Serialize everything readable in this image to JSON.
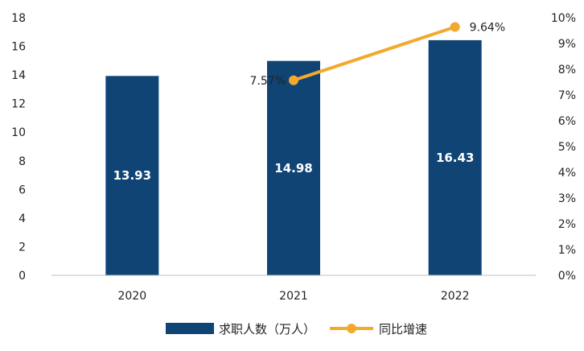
{
  "chart_data": {
    "type": "bar",
    "categories": [
      "2020",
      "2021",
      "2022"
    ],
    "series": [
      {
        "name": "求职人数（万人）",
        "type": "bar",
        "axis": "left",
        "values": [
          13.93,
          14.98,
          16.43
        ],
        "labels": [
          "13.93",
          "14.98",
          "16.43"
        ],
        "color": "#0f4475"
      },
      {
        "name": "同比增速",
        "type": "line",
        "axis": "right",
        "values": [
          null,
          7.57,
          9.64
        ],
        "labels": [
          null,
          "7.57%",
          "9.64%"
        ],
        "color": "#f2a92e"
      }
    ],
    "y_left": {
      "min": 0,
      "max": 18,
      "ticks": [
        "0",
        "2",
        "4",
        "6",
        "8",
        "10",
        "12",
        "14",
        "16",
        "18"
      ]
    },
    "y_right": {
      "min": 0,
      "max": 10,
      "ticks": [
        "0%",
        "1%",
        "2%",
        "3%",
        "4%",
        "5%",
        "6%",
        "7%",
        "8%",
        "9%",
        "10%"
      ]
    },
    "grid": false,
    "legend": "bottom-center",
    "title": ""
  }
}
